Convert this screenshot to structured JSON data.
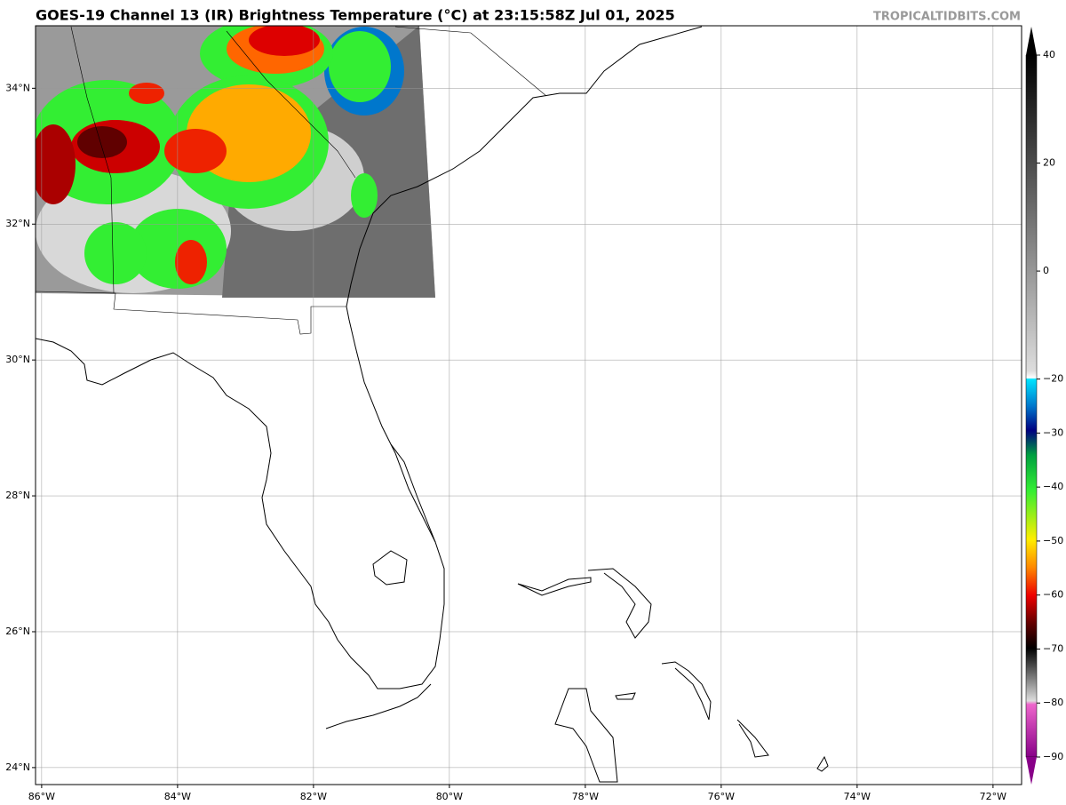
{
  "header": {
    "title": "GOES-19 Channel 13 (IR) Brightness Temperature (°C) at 23:15:58Z Jul 01, 2025",
    "credit": "TROPICALTIDBITS.COM"
  },
  "map": {
    "xlim": [
      -86.09,
      -71.58
    ],
    "ylim": [
      23.75,
      34.92
    ],
    "xticks": [
      {
        "value": -86,
        "label": "86°W"
      },
      {
        "value": -84,
        "label": "84°W"
      },
      {
        "value": -82,
        "label": "82°W"
      },
      {
        "value": -80,
        "label": "80°W"
      },
      {
        "value": -78,
        "label": "78°W"
      },
      {
        "value": -76,
        "label": "76°W"
      },
      {
        "value": -74,
        "label": "74°W"
      },
      {
        "value": -72,
        "label": "72°W"
      }
    ],
    "yticks": [
      {
        "value": 24,
        "label": "24°N"
      },
      {
        "value": 26,
        "label": "26°N"
      },
      {
        "value": 28,
        "label": "28°N"
      },
      {
        "value": 30,
        "label": "30°N"
      },
      {
        "value": 32,
        "label": "32°N"
      },
      {
        "value": 34,
        "label": "34°N"
      }
    ],
    "grid": true
  },
  "colorbar": {
    "lim": [
      -90,
      40
    ],
    "ticks": [
      40,
      20,
      0,
      {
        "value": -20,
        "label": "−20"
      },
      {
        "value": -30,
        "label": "−30"
      },
      {
        "value": -40,
        "label": "−40"
      },
      {
        "value": -50,
        "label": "−50"
      },
      {
        "value": -60,
        "label": "−60"
      },
      {
        "value": -70,
        "label": "−70"
      },
      {
        "value": -80,
        "label": "−80"
      },
      {
        "value": -90,
        "label": "−90"
      }
    ]
  }
}
